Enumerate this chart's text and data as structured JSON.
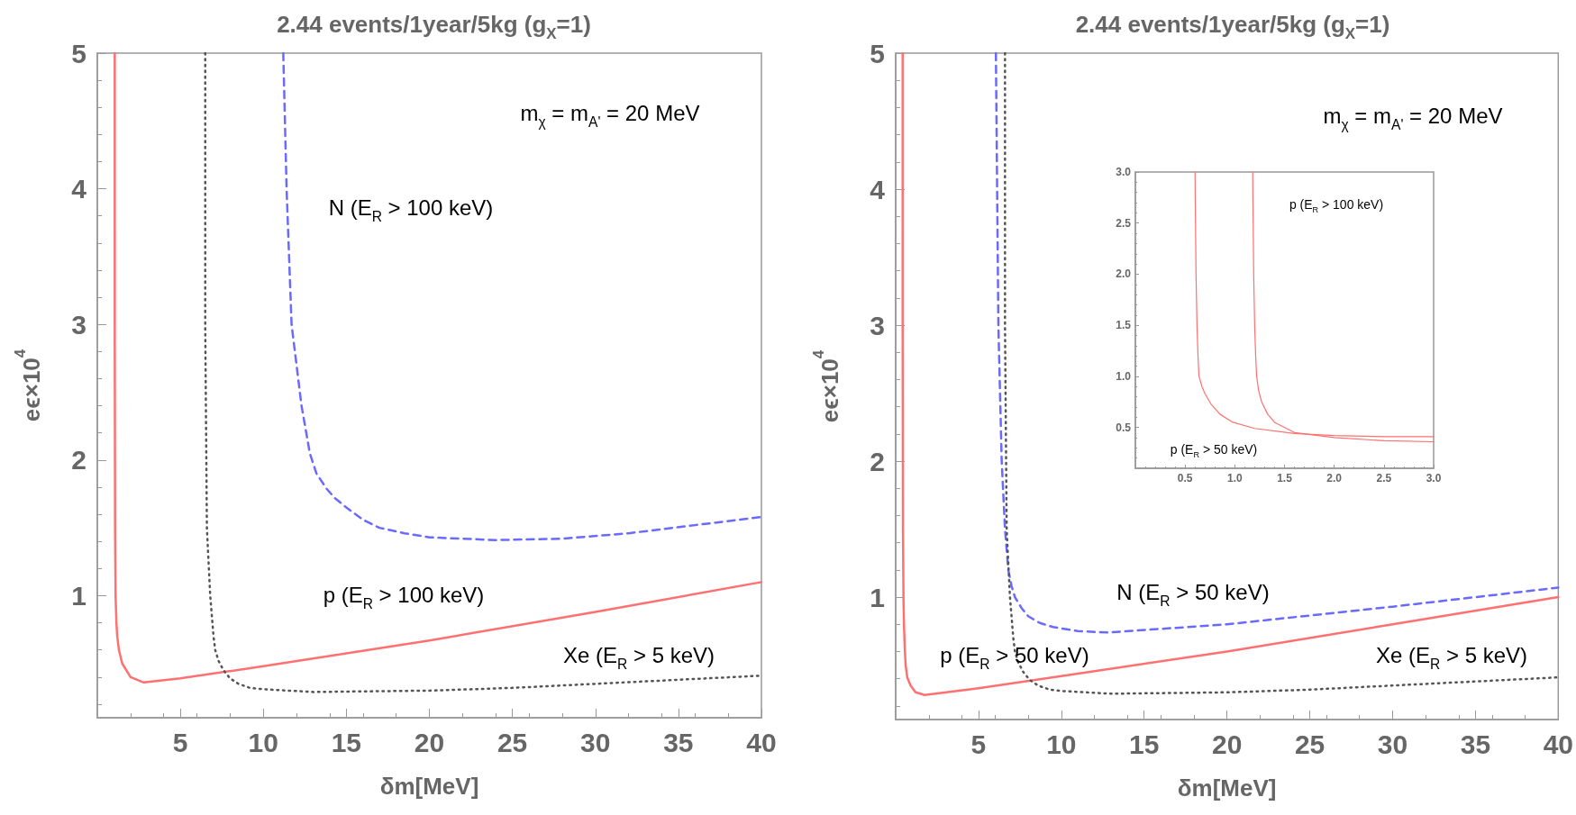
{
  "chart_data": [
    {
      "type": "line",
      "title": "2.44 events/1year/5kg (g$_{X}$=1)",
      "xlabel": "δm[MeV]",
      "ylabel": "eϵ×10$^{4}$",
      "xlim": [
        0,
        40
      ],
      "ylim": [
        0.1,
        5
      ],
      "xticks": [
        5,
        10,
        15,
        20,
        25,
        30,
        35,
        40
      ],
      "yticks": [
        1,
        2,
        3,
        4,
        5
      ],
      "grid": false,
      "marker": "none",
      "annotations": [
        "m$_{χ}$ = m$_{A'}$ = 20 MeV",
        "N (E$_{R}$ > 100 keV)",
        "p (E$_{R}$ > 100 keV)",
        "Xe (E$_{R}$ > 5 keV)"
      ],
      "series": [
        {
          "color": "#ff7070",
          "line_style": "solid",
          "x": [
            1.05,
            1.05,
            1.07,
            1.1,
            1.15,
            1.2,
            1.3,
            1.5,
            2,
            2.8,
            5,
            10,
            20,
            30,
            40
          ],
          "values": [
            5,
            3,
            1.5,
            1,
            0.8,
            0.7,
            0.6,
            0.5,
            0.4,
            0.36,
            0.39,
            0.48,
            0.67,
            0.88,
            1.1
          ]
        },
        {
          "color": "#6a6aff",
          "line_style": "dashed",
          "x": [
            11.2,
            11.4,
            11.7,
            12,
            12.3,
            12.8,
            13.2,
            13.8,
            14.3,
            15,
            16,
            17,
            18.5,
            20,
            24,
            28,
            32,
            36,
            40
          ],
          "values": [
            5,
            4,
            3,
            2.7,
            2.4,
            2.05,
            1.9,
            1.79,
            1.72,
            1.65,
            1.56,
            1.5,
            1.46,
            1.43,
            1.41,
            1.42,
            1.46,
            1.52,
            1.58
          ]
        },
        {
          "color": "#555555",
          "line_style": "dotted",
          "x": [
            6.5,
            6.5,
            6.6,
            6.8,
            7,
            7.1,
            7.3,
            7.6,
            8,
            8.5,
            9.2,
            10,
            13,
            20,
            25,
            30,
            35,
            40
          ],
          "values": [
            5,
            3,
            1.5,
            1,
            0.7,
            0.6,
            0.52,
            0.45,
            0.39,
            0.35,
            0.32,
            0.31,
            0.29,
            0.3,
            0.32,
            0.35,
            0.38,
            0.41
          ]
        }
      ]
    },
    {
      "type": "line",
      "title": "2.44 events/1year/5kg (g$_{X}$=1)",
      "xlabel": "δm[MeV]",
      "ylabel": "eϵ×10$^{4}$",
      "xlim": [
        0,
        40
      ],
      "ylim": [
        0.1,
        5
      ],
      "xticks": [
        5,
        10,
        15,
        20,
        25,
        30,
        35,
        40
      ],
      "yticks": [
        1,
        2,
        3,
        4,
        5
      ],
      "grid": false,
      "marker": "none",
      "annotations": [
        "m$_{χ}$ = m$_{A'}$ = 20 MeV",
        "N (E$_{R}$ > 50 keV)",
        "p (E$_{R}$ > 50 keV)",
        "Xe (E$_{R}$ > 5 keV)"
      ],
      "series": [
        {
          "color": "#ff7070",
          "line_style": "solid",
          "x": [
            0.42,
            0.42,
            0.44,
            0.47,
            0.5,
            0.55,
            0.6,
            0.7,
            0.9,
            1.2,
            1.75,
            5,
            10,
            20,
            30,
            40
          ],
          "values": [
            5,
            3,
            1.5,
            1,
            0.8,
            0.62,
            0.5,
            0.41,
            0.35,
            0.3,
            0.28,
            0.33,
            0.42,
            0.6,
            0.8,
            1.0
          ]
        },
        {
          "color": "#6a6aff",
          "line_style": "dashed",
          "x": [
            6.05,
            6.2,
            6.4,
            6.6,
            6.8,
            7,
            7.2,
            7.6,
            8,
            8.7,
            9.5,
            11,
            12.8,
            20,
            30,
            40
          ],
          "values": [
            5,
            3,
            2,
            1.5,
            1.2,
            1.08,
            1,
            0.92,
            0.86,
            0.81,
            0.78,
            0.75,
            0.74,
            0.8,
            0.93,
            1.07
          ]
        },
        {
          "color": "#555555",
          "line_style": "dotted",
          "x": [
            6.6,
            6.6,
            6.7,
            6.9,
            7.1,
            7.2,
            7.4,
            7.7,
            8.1,
            8.6,
            9.3,
            10,
            13,
            20,
            25,
            30,
            35,
            40
          ],
          "values": [
            5,
            3,
            1.5,
            1,
            0.7,
            0.6,
            0.52,
            0.45,
            0.39,
            0.35,
            0.32,
            0.31,
            0.29,
            0.3,
            0.32,
            0.35,
            0.38,
            0.41
          ]
        }
      ]
    },
    {
      "type": "line",
      "xlim": [
        0,
        3
      ],
      "ylim": [
        0.1,
        3
      ],
      "xticks": [
        0.5,
        {
          "value": 1,
          "label": "1.0"
        },
        1.5,
        {
          "value": 2,
          "label": "2.0"
        },
        2.5,
        {
          "value": 3,
          "label": "3.0"
        }
      ],
      "yticks": [
        0.5,
        {
          "value": 1,
          "label": "1.0"
        },
        1.5,
        {
          "value": 2,
          "label": "2.0"
        },
        2.5,
        {
          "value": 3,
          "label": "3.0"
        }
      ],
      "grid": false,
      "marker": "none",
      "annotations": [
        "p (E$_{R}$ > 100 keV)",
        "p (E$_{R}$ > 50 keV)"
      ],
      "series": [
        {
          "color": "#ff7070",
          "line_style": "solid",
          "x": [
            0.6,
            0.61,
            0.62,
            0.63,
            0.64,
            0.67,
            0.7,
            0.76,
            0.85,
            0.98,
            1.2,
            1.6,
            2,
            2.5,
            3
          ],
          "values": [
            3,
            2,
            1.5,
            1.2,
            1,
            0.9,
            0.83,
            0.73,
            0.63,
            0.55,
            0.49,
            0.44,
            0.42,
            0.41,
            0.41
          ]
        },
        {
          "color": "#ff7070",
          "line_style": "solid",
          "x": [
            1.18,
            1.19,
            1.2,
            1.21,
            1.22,
            1.24,
            1.27,
            1.33,
            1.4,
            1.6,
            2,
            2.5,
            3
          ],
          "values": [
            3,
            2,
            1.5,
            1.2,
            1,
            0.86,
            0.75,
            0.63,
            0.55,
            0.45,
            0.4,
            0.37,
            0.36
          ]
        }
      ]
    }
  ]
}
